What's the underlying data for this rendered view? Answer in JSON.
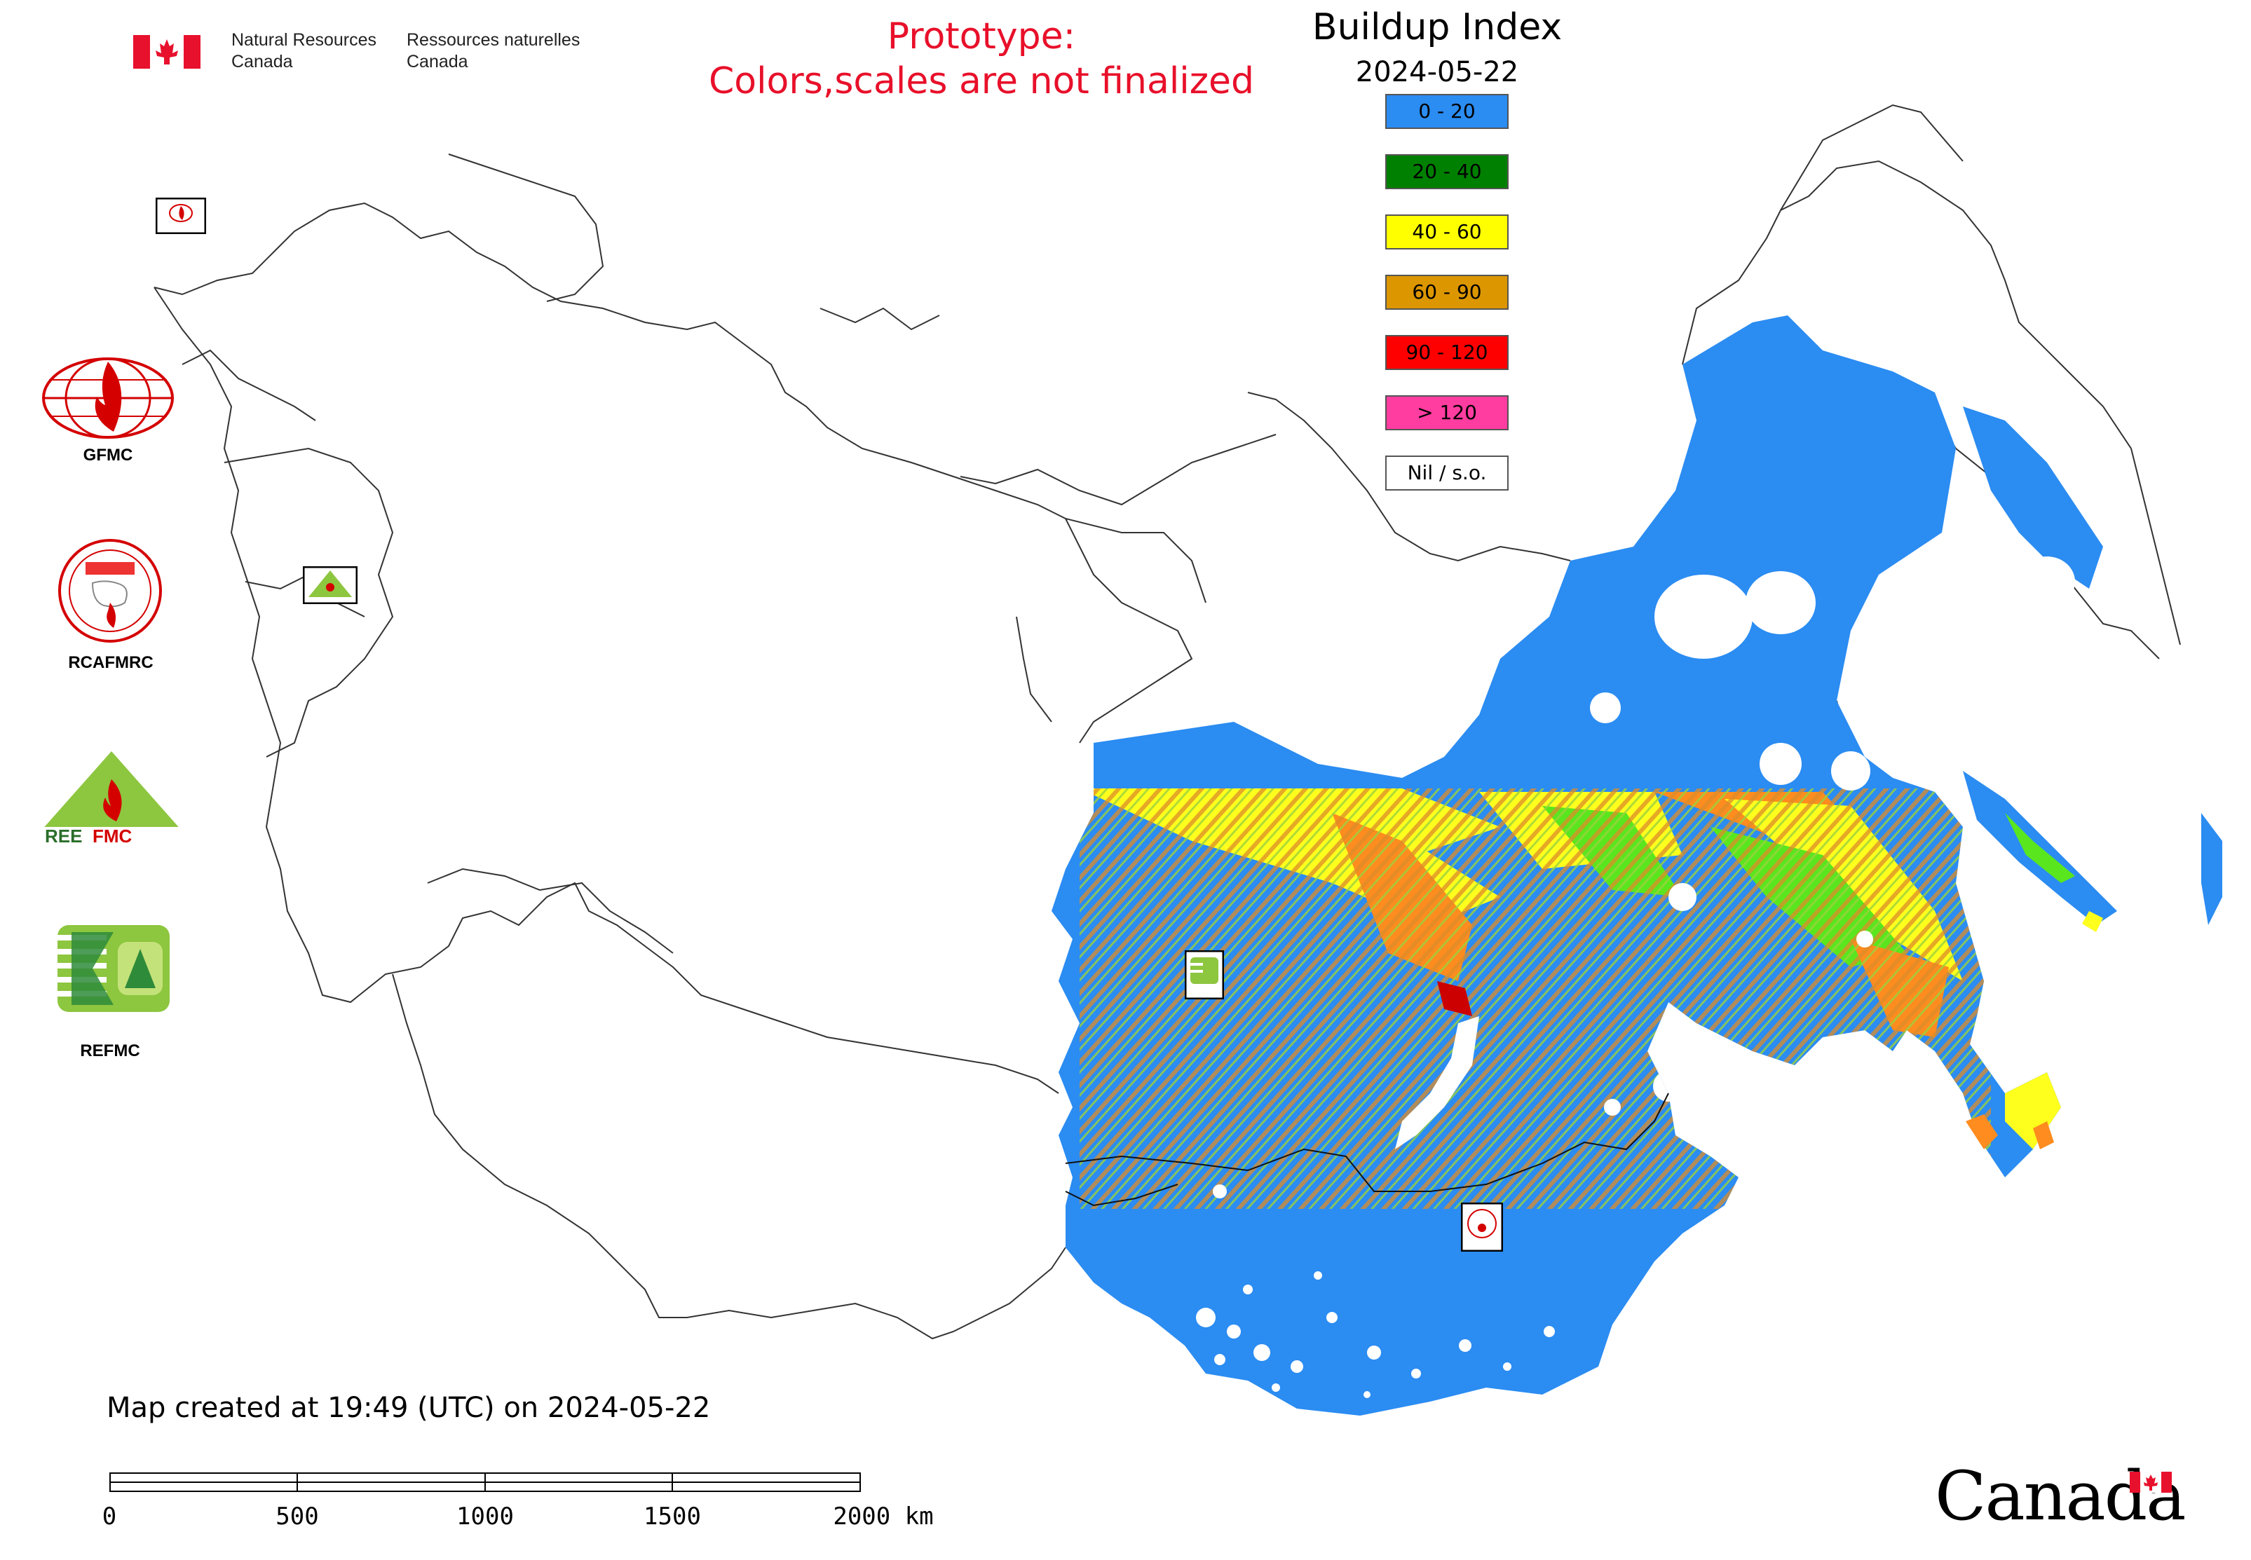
{
  "header": {
    "agency_en": "Natural Resources\nCanada",
    "agency_fr": "Ressources naturelles\nCanada",
    "prototype_line1": "Prototype:",
    "prototype_line2": "Colors,scales are not finalized"
  },
  "legend": {
    "title": "Buildup Index",
    "date": "2024-05-22",
    "items": [
      {
        "label": "0 - 20",
        "color": "#2b8cf2"
      },
      {
        "label": "20 - 40",
        "color": "#008000"
      },
      {
        "label": "40 - 60",
        "color": "#ffff00"
      },
      {
        "label": "60 - 90",
        "color": "#dc9600"
      },
      {
        "label": "90 - 120",
        "color": "#ff0000"
      },
      {
        "label": "> 120",
        "color": "#ff3ca0"
      },
      {
        "label": "Nil / s.o.",
        "color": "#ffffff"
      }
    ]
  },
  "side_logos": [
    {
      "name": "GFMC"
    },
    {
      "name": "RCAFMRC"
    },
    {
      "name": "REEFMC"
    },
    {
      "name": "REFMC"
    }
  ],
  "footer": {
    "created": "Map created at 19:49 (UTC) on 2024-05-22",
    "scale_labels": [
      "0",
      "500",
      "1000",
      "1500",
      "2000 km"
    ],
    "wordmark": "Canada"
  }
}
